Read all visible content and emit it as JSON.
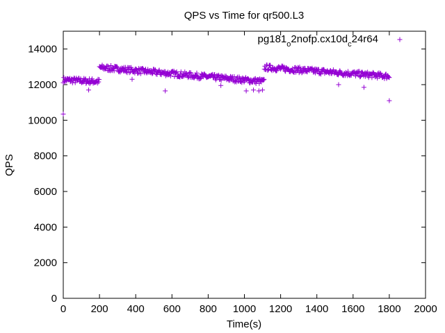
{
  "chart_data": {
    "type": "scatter",
    "title": "QPS vs Time for qr500.L3",
    "xlabel": "Time(s)",
    "ylabel": "QPS",
    "xlim": [
      0,
      2000
    ],
    "ylim": [
      0,
      15000
    ],
    "xticks": [
      0,
      200,
      400,
      600,
      800,
      1000,
      1200,
      1400,
      1600,
      1800,
      2000
    ],
    "yticks": [
      0,
      2000,
      4000,
      6000,
      8000,
      10000,
      12000,
      14000
    ],
    "grid": false,
    "legend_position": "top-right",
    "series": [
      {
        "name_parts": [
          "pg181",
          "o",
          "2nofp.cx10d",
          "c",
          "24r64"
        ],
        "color": "#9400d3",
        "marker": "+",
        "segments": [
          {
            "x_start": 0,
            "x_end": 200,
            "y_start": 12300,
            "y_end": 12200
          },
          {
            "x_start": 200,
            "x_end": 1110,
            "y_start": 13000,
            "y_end": 12200
          },
          {
            "x_start": 1110,
            "x_end": 1800,
            "y_start": 13000,
            "y_end": 12500
          }
        ],
        "outliers": [
          {
            "x": 0,
            "y": 10350
          },
          {
            "x": 563,
            "y": 11650
          },
          {
            "x": 1010,
            "y": 11650
          },
          {
            "x": 1050,
            "y": 11700
          },
          {
            "x": 1080,
            "y": 11650
          },
          {
            "x": 1100,
            "y": 11700
          },
          {
            "x": 1800,
            "y": 11100
          },
          {
            "x": 1520,
            "y": 12000
          },
          {
            "x": 1660,
            "y": 11850
          },
          {
            "x": 140,
            "y": 11700
          },
          {
            "x": 380,
            "y": 12300
          },
          {
            "x": 870,
            "y": 11950
          }
        ]
      }
    ]
  }
}
